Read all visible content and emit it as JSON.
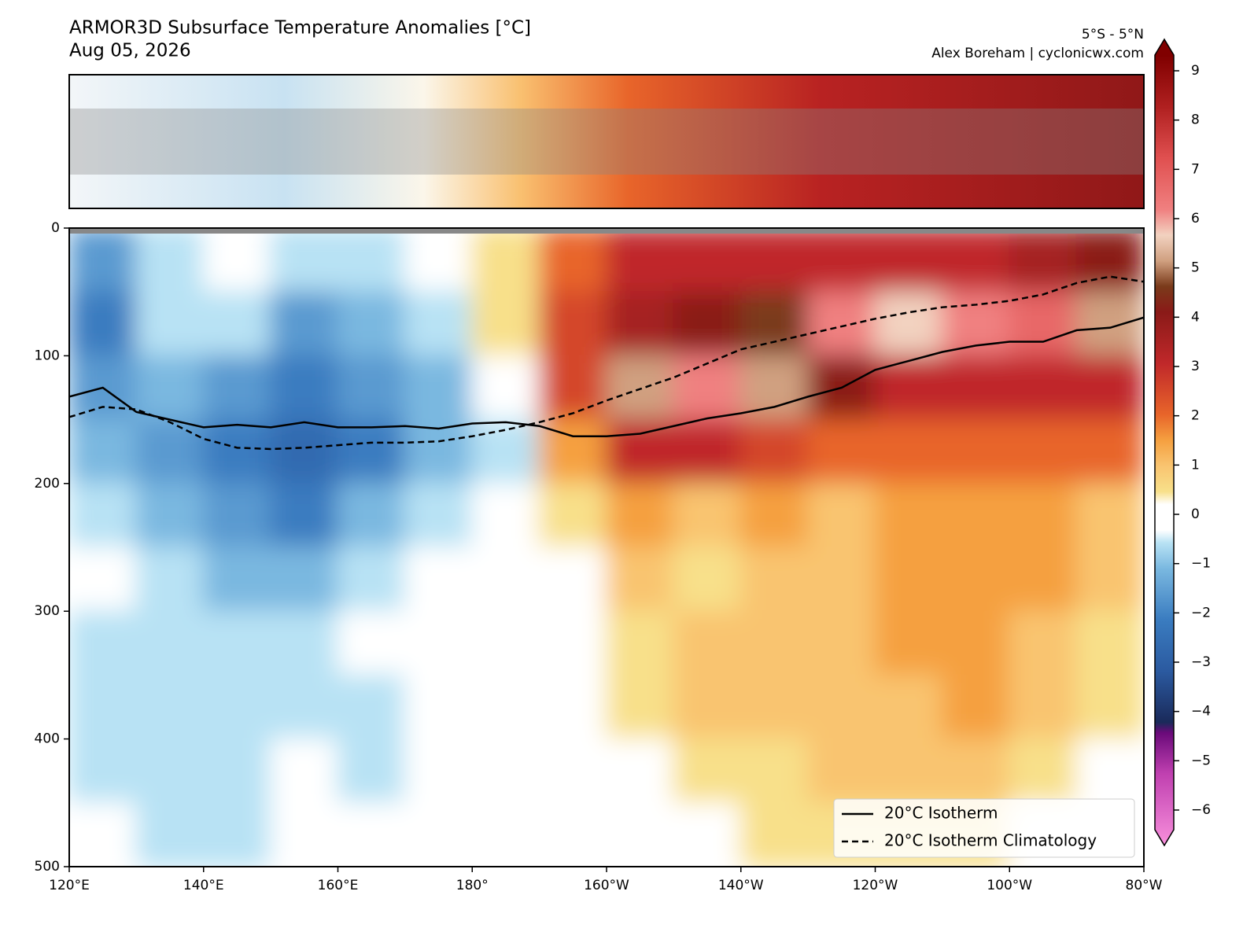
{
  "chart_data": {
    "type": "contour",
    "title": "ARMOR3D Subsurface Temperature Anomalies [°C]",
    "subtitle": "Aug 05, 2026",
    "region": "5°S - 5°N",
    "credit": "Alex Boreham | cyclonicwx.com",
    "xlim": [
      120,
      280
    ],
    "xticks": [
      {
        "value": 120,
        "label": "120°E"
      },
      {
        "value": 140,
        "label": "140°E"
      },
      {
        "value": 160,
        "label": "160°E"
      },
      {
        "value": 180,
        "label": "180°"
      },
      {
        "value": 200,
        "label": "160°W"
      },
      {
        "value": 220,
        "label": "140°W"
      },
      {
        "value": 240,
        "label": "120°W"
      },
      {
        "value": 260,
        "label": "100°W"
      },
      {
        "value": 280,
        "label": "80°W"
      }
    ],
    "ylim": [
      500,
      0
    ],
    "yticks": [
      0,
      100,
      200,
      300,
      400,
      500
    ],
    "cbar_lim": [
      -6,
      9
    ],
    "cbar_ticks": [
      9,
      8,
      7,
      6,
      5,
      4,
      3,
      2,
      1,
      0,
      {
        "value": -1,
        "label": "−1"
      },
      {
        "value": -2,
        "label": "−2"
      },
      {
        "value": -3,
        "label": "−3"
      },
      {
        "value": -4,
        "label": "−4"
      },
      {
        "value": -5,
        "label": "−5"
      },
      {
        "value": -6,
        "label": "−6"
      }
    ],
    "colorscale": [
      [
        -6.5,
        "#f890dc"
      ],
      [
        -5,
        "#c040b0"
      ],
      [
        -4.2,
        "#6a0a7a"
      ],
      [
        -4,
        "#1a2a5a"
      ],
      [
        -3,
        "#2b5aa0"
      ],
      [
        -2,
        "#3a7cc0"
      ],
      [
        -1,
        "#7ab8e0"
      ],
      [
        -0.5,
        "#b8e2f4"
      ],
      [
        -0.25,
        "#ffffff"
      ],
      [
        0.25,
        "#ffffff"
      ],
      [
        0.5,
        "#f8e08a"
      ],
      [
        1,
        "#f9c470"
      ],
      [
        1.5,
        "#f5a040"
      ],
      [
        2,
        "#e8652a"
      ],
      [
        3,
        "#c0282a"
      ],
      [
        4,
        "#8a1a18"
      ],
      [
        4.5,
        "#7a3a1a"
      ],
      [
        5,
        "#d0a080"
      ],
      [
        5.5,
        "#f2d2c0"
      ],
      [
        6,
        "#f08080"
      ],
      [
        7,
        "#e05050"
      ],
      [
        8,
        "#b02020"
      ],
      [
        9,
        "#800000"
      ]
    ],
    "field": {
      "lon": [
        125,
        135,
        145,
        155,
        165,
        175,
        185,
        195,
        205,
        215,
        225,
        235,
        245,
        255,
        265,
        275
      ],
      "depth": [
        25,
        75,
        125,
        175,
        225,
        275,
        325,
        375,
        425,
        475
      ],
      "values": [
        [
          -1.5,
          -0.5,
          0,
          -0.5,
          -0.5,
          0,
          0.5,
          2,
          3,
          3,
          3,
          3,
          3,
          3,
          3.5,
          4
        ],
        [
          -2,
          -0.5,
          -0.5,
          -1.5,
          -1,
          -0.5,
          0.5,
          2.5,
          3.5,
          4,
          4.5,
          6,
          5.5,
          6,
          6.5,
          5
        ],
        [
          -1.5,
          -1,
          -1.5,
          -2,
          -1.5,
          -1,
          0,
          2.5,
          5,
          6,
          5,
          4,
          3,
          3,
          3,
          3
        ],
        [
          -1,
          -1.5,
          -2,
          -2.5,
          -2,
          -1,
          -0.5,
          1.5,
          3,
          3,
          2.5,
          2,
          2,
          2,
          2,
          2
        ],
        [
          -0.5,
          -1,
          -1.5,
          -2,
          -1,
          -0.5,
          0,
          0.5,
          1.5,
          1,
          1.5,
          1,
          1.5,
          1.5,
          1.5,
          1
        ],
        [
          0,
          -0.5,
          -1,
          -1,
          -0.5,
          0,
          0,
          0,
          1,
          0.5,
          1,
          1,
          1.5,
          1.5,
          1.5,
          1
        ],
        [
          -0.5,
          -0.5,
          -0.5,
          -0.5,
          0,
          0,
          0,
          0,
          0.5,
          1,
          1,
          1,
          1.5,
          1.5,
          1,
          0.5
        ],
        [
          -0.5,
          -0.5,
          -0.5,
          -0.5,
          -0.5,
          0,
          0,
          0,
          0.5,
          1,
          1,
          1,
          1,
          1.5,
          1,
          0.5
        ],
        [
          -0.5,
          -0.5,
          -0.5,
          0,
          -0.5,
          0,
          0,
          0,
          0,
          0.5,
          0.5,
          1,
          1,
          1,
          0.5,
          0
        ],
        [
          0,
          -0.5,
          -0.5,
          0,
          0,
          0,
          0,
          0,
          0,
          0,
          0.5,
          0.5,
          0.5,
          0.5,
          0,
          0
        ]
      ]
    },
    "x": [
      120,
      125,
      130,
      135,
      140,
      145,
      150,
      155,
      160,
      165,
      170,
      175,
      180,
      185,
      190,
      195,
      200,
      205,
      210,
      215,
      220,
      225,
      230,
      235,
      240,
      245,
      250,
      255,
      260,
      265,
      270,
      275,
      280
    ],
    "series": [
      {
        "name": "20°C Isotherm",
        "color": "#000000",
        "dash": false,
        "values": [
          132,
          125,
          144,
          150,
          156,
          154,
          156,
          152,
          156,
          156,
          155,
          157,
          153,
          152,
          155,
          163,
          163,
          161,
          155,
          149,
          145,
          140,
          132,
          125,
          111,
          104,
          97,
          92,
          89,
          89,
          80,
          78,
          70
        ]
      },
      {
        "name": "20°C Isotherm Climatology",
        "color": "#000000",
        "dash": true,
        "values": [
          148,
          140,
          142,
          152,
          165,
          172,
          173,
          172,
          170,
          168,
          168,
          167,
          163,
          158,
          152,
          145,
          135,
          126,
          117,
          106,
          95,
          89,
          83,
          77,
          71,
          66,
          62,
          60,
          57,
          52,
          43,
          38,
          42
        ]
      }
    ],
    "legend": "lower right"
  }
}
